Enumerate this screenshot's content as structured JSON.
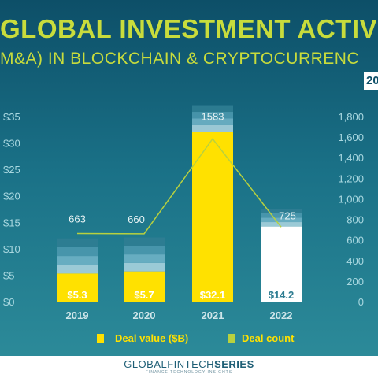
{
  "chart_data": {
    "type": "bar",
    "title": "GLOBAL INVESTMENT ACTIV",
    "subtitle": "M&A) IN BLOCKCHAIN & CRYPTOCURRENC",
    "year_badge": "20",
    "categories": [
      "2019",
      "2020",
      "2021",
      "2022"
    ],
    "series": [
      {
        "name": "Deal value ($B)",
        "type": "bar",
        "axis": "left",
        "values": [
          5.3,
          5.7,
          32.1,
          14.2
        ],
        "labels": [
          "$5.3",
          "$5.7",
          "$32.1",
          "$14.2"
        ]
      },
      {
        "name": "Deal count",
        "type": "line",
        "axis": "right",
        "values": [
          663,
          660,
          1583,
          725
        ],
        "labels": [
          "663",
          "660",
          "1583",
          "725"
        ]
      }
    ],
    "y_left": {
      "min": 0,
      "max": 35,
      "ticks": [
        0,
        5,
        10,
        15,
        20,
        25,
        30,
        35
      ],
      "tick_labels": [
        "$0",
        "$5",
        "$10",
        "$15",
        "$20",
        "$25",
        "$30",
        "$35"
      ]
    },
    "y_right": {
      "min": 0,
      "max": 1800,
      "ticks": [
        0,
        200,
        400,
        600,
        800,
        1000,
        1200,
        1400,
        1600,
        1800
      ],
      "tick_labels": [
        "0",
        "200",
        "400",
        "600",
        "800",
        "1,000",
        "1,200",
        "1,400",
        "1,600",
        "1,800"
      ]
    },
    "legend_position": "bottom",
    "colors": {
      "highlight": "#ffe100",
      "highlight_2022": "#ffffff",
      "line": "#b8d13e",
      "segments": [
        "#a9d3de",
        "#6fb3c6",
        "#4b98ae",
        "#2f7d92"
      ]
    }
  },
  "branding": {
    "name_regular": "GLOBALFINTECH",
    "name_bold": "SERIES",
    "tagline": "FINANCE TECHNOLOGY INSIGHTS"
  }
}
